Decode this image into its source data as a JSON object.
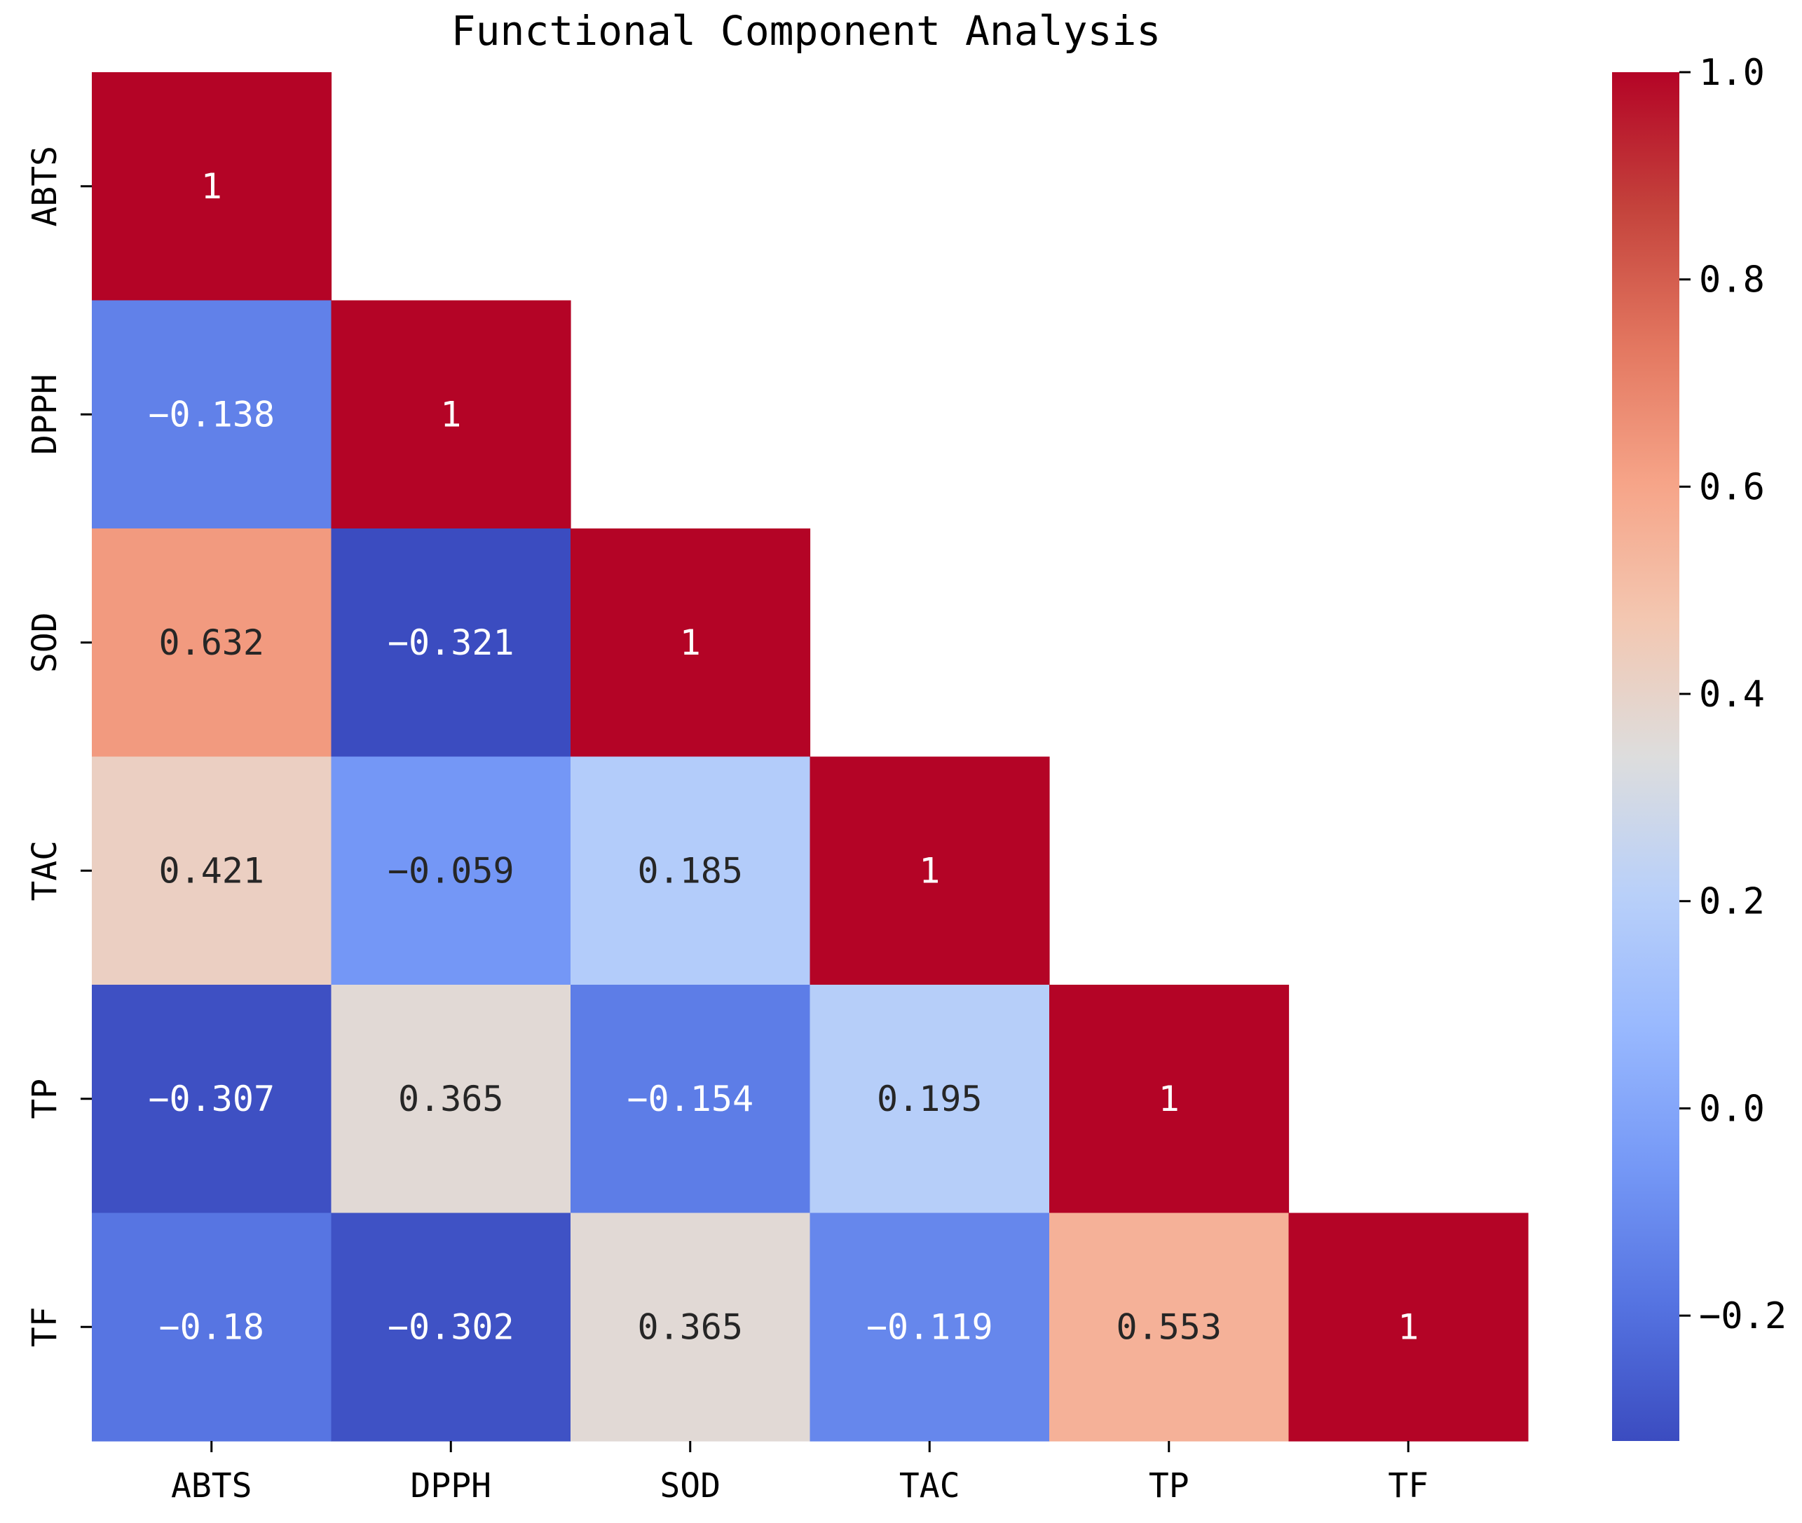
{
  "chart_data": {
    "type": "heatmap",
    "title": "Functional Component Analysis",
    "xlabel": "",
    "ylabel": "",
    "x_categories": [
      "ABTS",
      "DPPH",
      "SOD",
      "TAC",
      "TP",
      "TF"
    ],
    "y_categories": [
      "ABTS",
      "DPPH",
      "SOD",
      "TAC",
      "TP",
      "TF"
    ],
    "mask": "upper-triangle",
    "values": [
      [
        1,
        null,
        null,
        null,
        null,
        null
      ],
      [
        -0.138,
        1,
        null,
        null,
        null,
        null
      ],
      [
        0.632,
        -0.321,
        1,
        null,
        null,
        null
      ],
      [
        0.421,
        -0.059,
        0.185,
        1,
        null,
        null
      ],
      [
        -0.307,
        0.365,
        -0.154,
        0.195,
        1,
        null
      ],
      [
        -0.18,
        -0.302,
        0.365,
        -0.119,
        0.553,
        1
      ]
    ],
    "labels": [
      [
        "1",
        null,
        null,
        null,
        null,
        null
      ],
      [
        "−0.138",
        "1",
        null,
        null,
        null,
        null
      ],
      [
        "0.632",
        "−0.321",
        "1",
        null,
        null,
        null
      ],
      [
        "0.421",
        "−0.059",
        "0.185",
        "1",
        null,
        null
      ],
      [
        "−0.307",
        "0.365",
        "−0.154",
        "0.195",
        "1",
        null
      ],
      [
        "−0.18",
        "−0.302",
        "0.365",
        "−0.119",
        "0.553",
        "1"
      ]
    ],
    "colorscale": "coolwarm",
    "vmin": -0.321,
    "vmax": 1.0,
    "colorbar": {
      "ticks": [
        1.0,
        0.8,
        0.6,
        0.4,
        0.2,
        0.0,
        -0.2
      ],
      "tick_labels": [
        "1.0",
        "0.8",
        "0.6",
        "0.4",
        "0.2",
        "0.0",
        "−0.2"
      ],
      "position": "right"
    },
    "grid": false
  }
}
